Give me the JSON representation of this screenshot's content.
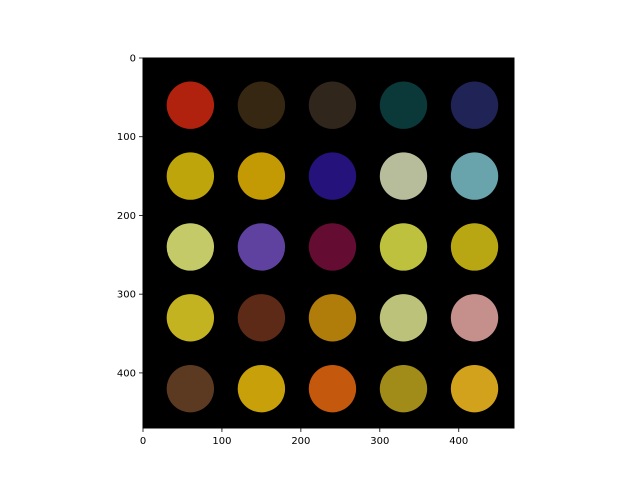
{
  "chart_data": {
    "type": "image",
    "title": "",
    "xlabel": "",
    "ylabel": "",
    "xlim": [
      0,
      470
    ],
    "ylim": [
      470,
      0
    ],
    "x_ticks": [
      0,
      100,
      200,
      300,
      400
    ],
    "y_ticks": [
      0,
      100,
      200,
      300,
      400
    ],
    "background_color": "#000000",
    "circle_radius": 30,
    "circles": [
      {
        "x": 60,
        "y": 60,
        "color": "#b0220e"
      },
      {
        "x": 150,
        "y": 60,
        "color": "#362712"
      },
      {
        "x": 240,
        "y": 60,
        "color": "#30261c"
      },
      {
        "x": 330,
        "y": 60,
        "color": "#0b3839"
      },
      {
        "x": 420,
        "y": 60,
        "color": "#1f2355"
      },
      {
        "x": 60,
        "y": 150,
        "color": "#bea50b"
      },
      {
        "x": 150,
        "y": 150,
        "color": "#c49a04"
      },
      {
        "x": 240,
        "y": 150,
        "color": "#25127a"
      },
      {
        "x": 330,
        "y": 150,
        "color": "#b7bd9b"
      },
      {
        "x": 420,
        "y": 150,
        "color": "#69a3ab"
      },
      {
        "x": 60,
        "y": 240,
        "color": "#c3ca67"
      },
      {
        "x": 150,
        "y": 240,
        "color": "#5f419f"
      },
      {
        "x": 240,
        "y": 240,
        "color": "#640c31"
      },
      {
        "x": 330,
        "y": 240,
        "color": "#bec13d"
      },
      {
        "x": 420,
        "y": 240,
        "color": "#b8a712"
      },
      {
        "x": 60,
        "y": 330,
        "color": "#c3b320"
      },
      {
        "x": 150,
        "y": 330,
        "color": "#5d2a17"
      },
      {
        "x": 240,
        "y": 330,
        "color": "#b07d0b"
      },
      {
        "x": 330,
        "y": 330,
        "color": "#bdc27a"
      },
      {
        "x": 420,
        "y": 330,
        "color": "#c5908c"
      },
      {
        "x": 60,
        "y": 420,
        "color": "#5c3a21"
      },
      {
        "x": 150,
        "y": 420,
        "color": "#c8a10a"
      },
      {
        "x": 240,
        "y": 420,
        "color": "#c4580c"
      },
      {
        "x": 330,
        "y": 420,
        "color": "#a18c19"
      },
      {
        "x": 420,
        "y": 420,
        "color": "#d2a21d"
      }
    ]
  }
}
